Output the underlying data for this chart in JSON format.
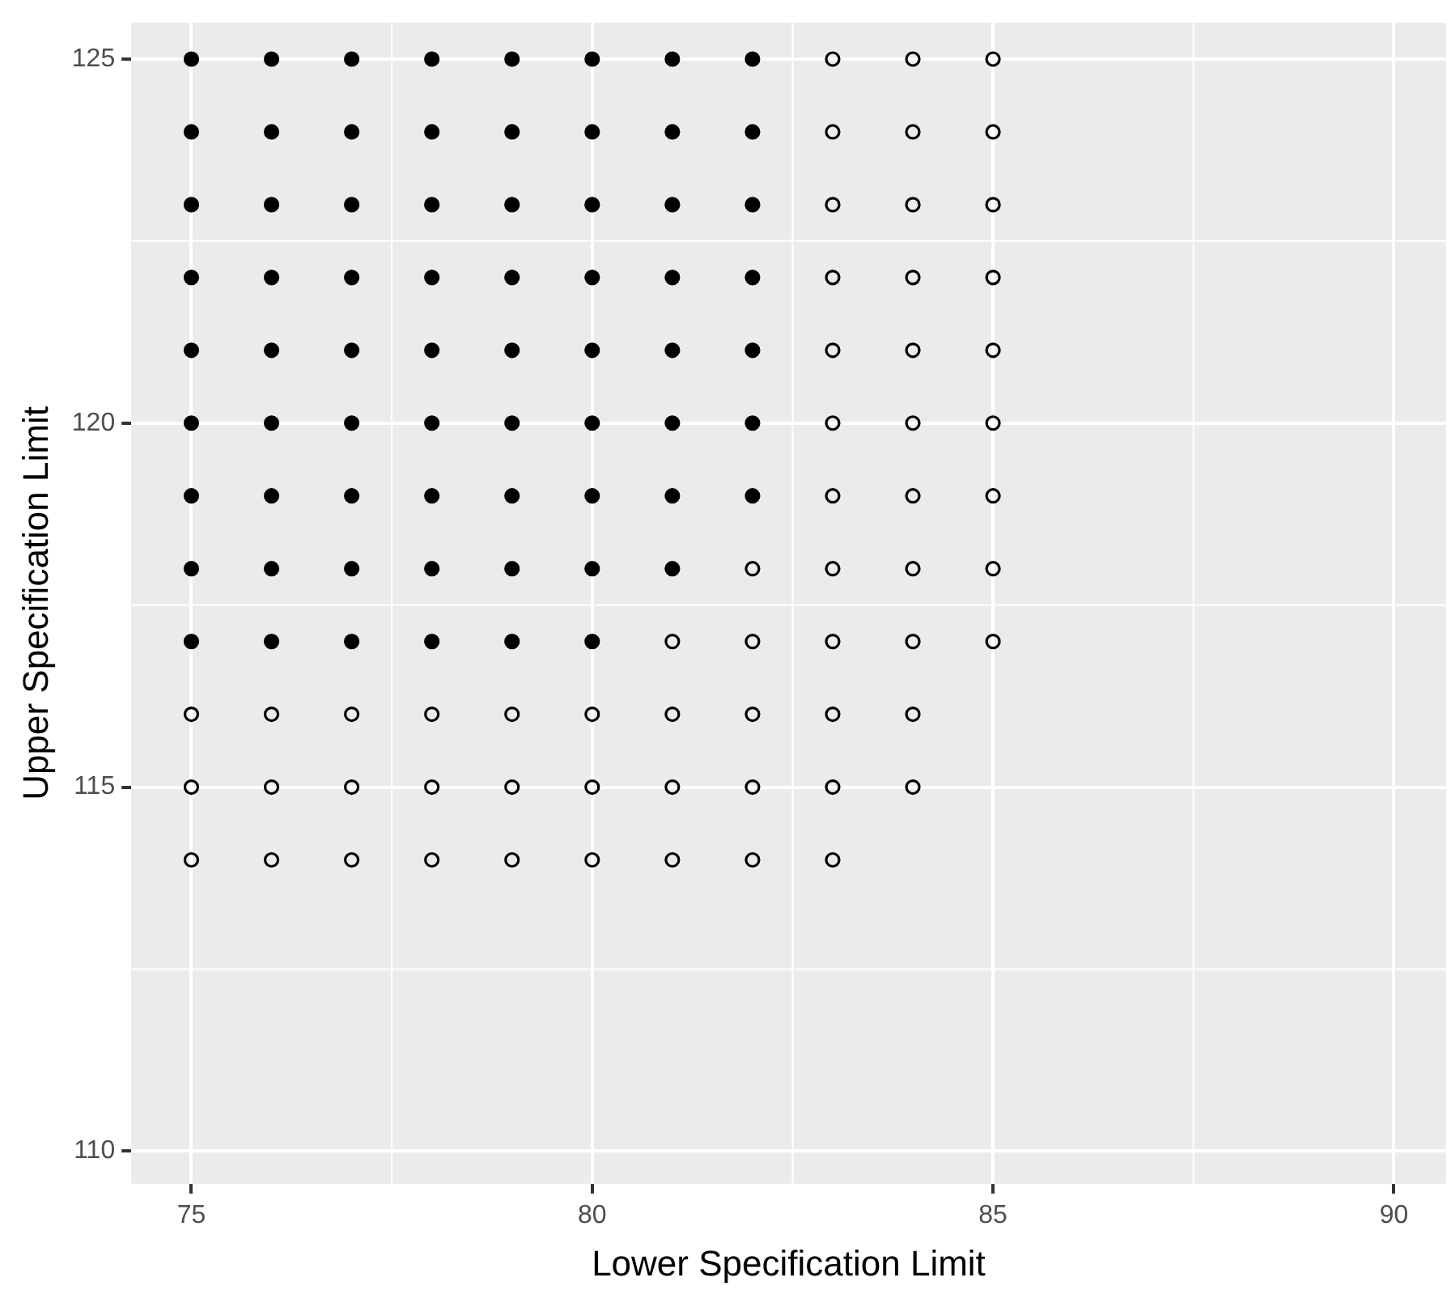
{
  "chart_data": {
    "type": "scatter",
    "xlabel": "Lower Specification Limit",
    "ylabel": "Upper Specification Limit",
    "xlim": [
      74.25,
      90.65
    ],
    "ylim": [
      109.55,
      125.5
    ],
    "xticks": [
      75,
      80,
      85,
      90
    ],
    "yticks": [
      110,
      115,
      120,
      125
    ],
    "grid": true,
    "legend": false,
    "series": [
      {
        "color": "#000000",
        "marker": "circle",
        "x": [
          75,
          76,
          77,
          78,
          79,
          80,
          81,
          82,
          75,
          76,
          77,
          78,
          79,
          80,
          81,
          82,
          75,
          76,
          77,
          78,
          79,
          80,
          81,
          82,
          75,
          76,
          77,
          78,
          79,
          80,
          81,
          82,
          75,
          76,
          77,
          78,
          79,
          80,
          81,
          82,
          75,
          76,
          77,
          78,
          79,
          80,
          81,
          82,
          75,
          76,
          77,
          78,
          79,
          80,
          81,
          82,
          75,
          76,
          77,
          78,
          79,
          80,
          81,
          75,
          76,
          77,
          78,
          79,
          80
        ],
        "values": [
          125,
          125,
          125,
          125,
          125,
          125,
          125,
          125,
          124,
          124,
          124,
          124,
          124,
          124,
          124,
          124,
          123,
          123,
          123,
          123,
          123,
          123,
          123,
          123,
          122,
          122,
          122,
          122,
          122,
          122,
          122,
          122,
          121,
          121,
          121,
          121,
          121,
          121,
          121,
          121,
          120,
          120,
          120,
          120,
          120,
          120,
          120,
          120,
          119,
          119,
          119,
          119,
          119,
          119,
          119,
          119,
          118,
          118,
          118,
          118,
          118,
          118,
          118,
          117,
          117,
          117,
          117,
          117,
          117
        ]
      },
      {
        "color": "#000000",
        "marker": "circle-open",
        "x": [
          83,
          84,
          85,
          83,
          84,
          85,
          83,
          84,
          85,
          83,
          84,
          85,
          83,
          84,
          85,
          83,
          84,
          85,
          83,
          84,
          85,
          82,
          83,
          84,
          85,
          81,
          82,
          83,
          84,
          85,
          75,
          76,
          77,
          78,
          79,
          80,
          81,
          82,
          83,
          84,
          75,
          76,
          77,
          78,
          79,
          80,
          81,
          82,
          83,
          84,
          75,
          76,
          77,
          78,
          79,
          80,
          81,
          82,
          83
        ],
        "values": [
          125,
          125,
          125,
          124,
          124,
          124,
          123,
          123,
          123,
          122,
          122,
          122,
          121,
          121,
          121,
          120,
          120,
          120,
          119,
          119,
          119,
          118,
          118,
          118,
          118,
          117,
          117,
          117,
          117,
          117,
          116,
          116,
          116,
          116,
          116,
          116,
          116,
          116,
          116,
          116,
          115,
          115,
          115,
          115,
          115,
          115,
          115,
          115,
          115,
          115,
          114,
          114,
          114,
          114,
          114,
          114,
          114,
          114,
          114
        ]
      }
    ]
  }
}
